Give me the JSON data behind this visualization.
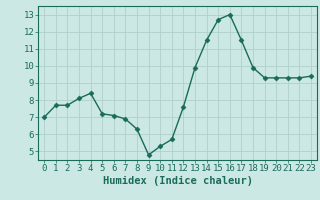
{
  "x": [
    0,
    1,
    2,
    3,
    4,
    5,
    6,
    7,
    8,
    9,
    10,
    11,
    12,
    13,
    14,
    15,
    16,
    17,
    18,
    19,
    20,
    21,
    22,
    23
  ],
  "y": [
    7.0,
    7.7,
    7.7,
    8.1,
    8.4,
    7.2,
    7.1,
    6.9,
    6.3,
    4.8,
    5.3,
    5.7,
    7.6,
    9.9,
    11.5,
    12.7,
    13.0,
    11.5,
    9.9,
    9.3,
    9.3,
    9.3,
    9.3,
    9.4
  ],
  "line_color": "#1a6b5a",
  "marker": "D",
  "marker_size": 2.5,
  "bg_color": "#cce8e4",
  "grid_color": "#b0d0cc",
  "xlabel": "Humidex (Indice chaleur)",
  "xlim": [
    -0.5,
    23.5
  ],
  "ylim": [
    4.5,
    13.5
  ],
  "yticks": [
    5,
    6,
    7,
    8,
    9,
    10,
    11,
    12,
    13
  ],
  "xticks": [
    0,
    1,
    2,
    3,
    4,
    5,
    6,
    7,
    8,
    9,
    10,
    11,
    12,
    13,
    14,
    15,
    16,
    17,
    18,
    19,
    20,
    21,
    22,
    23
  ],
  "tick_color": "#1a6b5a",
  "label_color": "#1a6b5a",
  "xlabel_fontsize": 7.5,
  "tick_fontsize": 6.5,
  "linewidth": 1.0
}
